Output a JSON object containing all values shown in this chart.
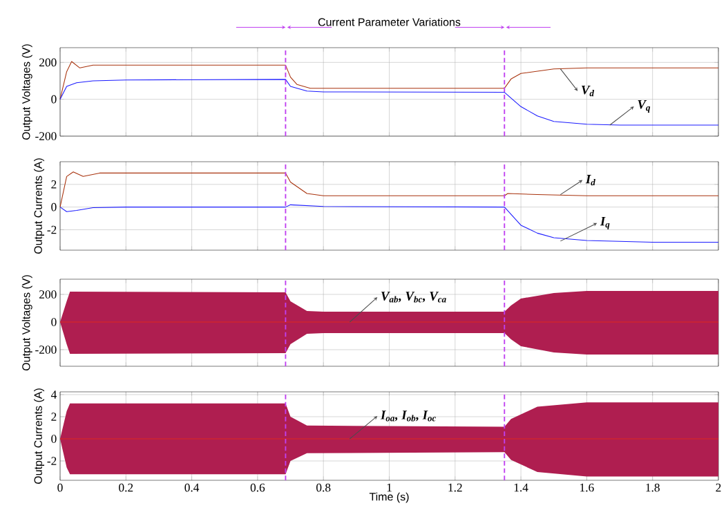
{
  "chart_data": [
    {
      "type": "line",
      "title": "Current Parameter Variations",
      "ylabel": "Output Voltages (V)",
      "xlim": [
        0,
        2
      ],
      "ylim": [
        -200,
        280
      ],
      "xticks": [
        0,
        0.2,
        0.4,
        0.6,
        0.8,
        1,
        1.2,
        1.4,
        1.6,
        1.8,
        2
      ],
      "yticks": [
        -200,
        0,
        200
      ],
      "grid": true,
      "tick_labels": "y",
      "series": [
        {
          "color": "#a8320c",
          "x": [
            0,
            0.02,
            0.035,
            0.06,
            0.1,
            0.685,
            0.7,
            0.72,
            0.76,
            1.35,
            1.37,
            1.4,
            1.5,
            1.6,
            2
          ],
          "values": [
            0,
            150,
            205,
            170,
            185,
            185,
            120,
            80,
            60,
            60,
            110,
            140,
            165,
            170,
            170
          ]
        },
        {
          "color": "#1a1aff",
          "x": [
            0,
            0.02,
            0.05,
            0.1,
            0.2,
            0.685,
            0.7,
            0.75,
            0.8,
            1.35,
            1.4,
            1.45,
            1.5,
            1.6,
            1.7,
            2
          ],
          "values": [
            0,
            70,
            90,
            100,
            105,
            108,
            70,
            45,
            40,
            38,
            -40,
            -90,
            -120,
            -135,
            -140,
            -140
          ]
        }
      ],
      "ref_lines": [
        {
          "axis": "x",
          "value": 0.685,
          "color": "#c040f0",
          "line_style": "dashed"
        },
        {
          "axis": "x",
          "value": 1.35,
          "color": "#c040f0",
          "line_style": "dashed"
        }
      ],
      "annotations": [
        {
          "text": "V$_{d}$",
          "x": 1.52,
          "y": 165
        },
        {
          "text": "V$_{q}$",
          "x": 1.67,
          "y": -140
        }
      ]
    },
    {
      "type": "line",
      "ylabel": "Output Currents (A)",
      "xlim": [
        0,
        2
      ],
      "ylim": [
        -3.8,
        4
      ],
      "xticks": [
        0,
        0.2,
        0.4,
        0.6,
        0.8,
        1,
        1.2,
        1.4,
        1.6,
        1.8,
        2
      ],
      "yticks": [
        -2,
        0,
        2
      ],
      "grid": true,
      "tick_labels": "y",
      "series": [
        {
          "color": "#a8320c",
          "x": [
            0,
            0.02,
            0.04,
            0.07,
            0.12,
            0.685,
            0.7,
            0.75,
            0.8,
            1.35,
            1.36,
            1.45,
            1.6,
            2
          ],
          "values": [
            0,
            2.7,
            3.1,
            2.7,
            3.0,
            3.0,
            2.2,
            1.2,
            1.0,
            1.0,
            1.2,
            1.1,
            1.0,
            1.0
          ]
        },
        {
          "color": "#1a1aff",
          "x": [
            0,
            0.02,
            0.05,
            0.1,
            0.2,
            0.685,
            0.7,
            0.8,
            1.35,
            1.4,
            1.45,
            1.5,
            1.6,
            1.8,
            2
          ],
          "values": [
            0,
            -0.4,
            -0.3,
            -0.05,
            0,
            0,
            0.2,
            0.05,
            0,
            -1.6,
            -2.3,
            -2.7,
            -2.95,
            -3.1,
            -3.1
          ]
        }
      ],
      "ref_lines": [
        {
          "axis": "x",
          "value": 0.685,
          "color": "#c040f0",
          "line_style": "dashed"
        },
        {
          "axis": "x",
          "value": 1.35,
          "color": "#c040f0",
          "line_style": "dashed"
        }
      ],
      "annotations": [
        {
          "text": "I$_{d}$",
          "x": 1.52,
          "y": 1.1
        },
        {
          "text": "I$_{q}$",
          "x": 1.52,
          "y": -3.0
        }
      ]
    },
    {
      "type": "line",
      "ylabel": "Output Voltages (V)",
      "xlim": [
        0,
        2
      ],
      "ylim": [
        -320,
        310
      ],
      "xticks": [
        0,
        0.2,
        0.4,
        0.6,
        0.8,
        1,
        1.2,
        1.4,
        1.6,
        1.8,
        2
      ],
      "yticks": [
        -200,
        0,
        200
      ],
      "grid": true,
      "tick_labels": "y",
      "series": [
        {
          "color": "#e0261e",
          "x": [
            0,
            0.02,
            0.03,
            0.685,
            0.7,
            0.75,
            0.8,
            1.35,
            1.37,
            1.4,
            1.5,
            1.6,
            2
          ],
          "values": [
            0,
            0,
            0,
            0,
            0,
            0,
            0,
            0,
            0,
            0,
            0,
            0,
            0
          ],
          "upper": [
            0,
            150,
            220,
            215,
            150,
            80,
            75,
            75,
            120,
            170,
            210,
            225,
            225
          ],
          "lower": [
            0,
            -160,
            -230,
            -225,
            -160,
            -85,
            -80,
            -80,
            -125,
            -175,
            -220,
            -235,
            -235
          ]
        }
      ],
      "ref_lines": [
        {
          "axis": "x",
          "value": 0.685,
          "color": "#c040f0",
          "line_style": "dashed"
        },
        {
          "axis": "x",
          "value": 1.35,
          "color": "#c040f0",
          "line_style": "dashed"
        }
      ],
      "annotations": [
        {
          "text": "V$_{ab}$, V$_{bc}$, V$_{ca}$",
          "x": 0.88,
          "y": 0
        }
      ]
    },
    {
      "type": "line",
      "ylabel": "Output Currents (A)",
      "xlabel": "Time (s)",
      "xlim": [
        0,
        2
      ],
      "ylim": [
        -3.75,
        4.25
      ],
      "xticks": [
        0,
        0.2,
        0.4,
        0.6,
        0.8,
        1,
        1.2,
        1.4,
        1.6,
        1.8,
        2
      ],
      "yticks": [
        -2,
        0,
        2,
        4
      ],
      "grid": true,
      "series": [
        {
          "color": "#e0261e",
          "x": [
            0,
            0.02,
            0.03,
            0.685,
            0.7,
            0.75,
            1.35,
            1.37,
            1.45,
            1.6,
            2
          ],
          "values": [
            0,
            0,
            0,
            0,
            0,
            0,
            0,
            0,
            0,
            0,
            0
          ],
          "upper": [
            0,
            2.5,
            3.2,
            3.2,
            2.0,
            1.2,
            1.1,
            1.8,
            2.9,
            3.3,
            3.3
          ],
          "lower": [
            0,
            -2.6,
            -3.2,
            -3.2,
            -2.0,
            -1.3,
            -1.2,
            -1.9,
            -3.0,
            -3.4,
            -3.4
          ]
        }
      ],
      "ref_lines": [
        {
          "axis": "x",
          "value": 0.685,
          "color": "#c040f0",
          "line_style": "dashed"
        },
        {
          "axis": "x",
          "value": 1.35,
          "color": "#c040f0",
          "line_style": "dashed"
        }
      ],
      "annotations": [
        {
          "text": "I$_{oa}$, I$_{ob}$, I$_{oc}$",
          "x": 0.88,
          "y": 0
        }
      ]
    }
  ]
}
